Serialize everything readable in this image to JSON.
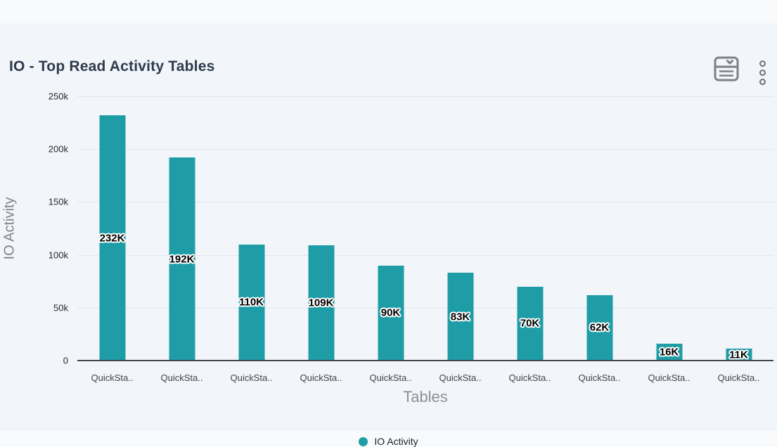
{
  "header": {
    "title": "IO - Top Read Activity Tables"
  },
  "chart_data": {
    "type": "bar",
    "title": "IO - Top Read Activity Tables",
    "categories": [
      "QuickSta..",
      "QuickSta..",
      "QuickSta..",
      "QuickSta..",
      "QuickSta..",
      "QuickSta..",
      "QuickSta..",
      "QuickSta..",
      "QuickSta..",
      "QuickSta.."
    ],
    "series": [
      {
        "name": "IO Activity",
        "values": [
          232000,
          192000,
          110000,
          109000,
          90000,
          83000,
          70000,
          62000,
          16000,
          11000
        ],
        "labels": [
          "232K",
          "192K",
          "110K",
          "109K",
          "90K",
          "83K",
          "70K",
          "62K",
          "16K",
          "11K"
        ],
        "color": "#1f9da6"
      }
    ],
    "xlabel": "Tables",
    "ylabel": "IO Activity",
    "ylim": [
      0,
      250000
    ],
    "yticks": [
      {
        "label": "250k",
        "value": 250000
      },
      {
        "label": "200k",
        "value": 200000
      },
      {
        "label": "150k",
        "value": 150000
      },
      {
        "label": "100k",
        "value": 100000
      },
      {
        "label": "50k",
        "value": 50000
      },
      {
        "label": "0",
        "value": 0
      }
    ],
    "grid": true,
    "legend_position": "bottom"
  },
  "legend": {
    "items": [
      {
        "label": "IO Activity",
        "color": "#1f9da6"
      }
    ]
  },
  "icons": {
    "card_view": "card-list-collapse-icon",
    "menu": "kebab-menu-icon"
  },
  "colors": {
    "bar": "#1f9da6",
    "card_bg": "#f2f5f9",
    "page_bg": "#f9fafc",
    "gridline": "#dfe8f2",
    "axis_line": "#43474d",
    "title_text": "#2e3b4d",
    "axis_title_text": "#8c9198"
  }
}
